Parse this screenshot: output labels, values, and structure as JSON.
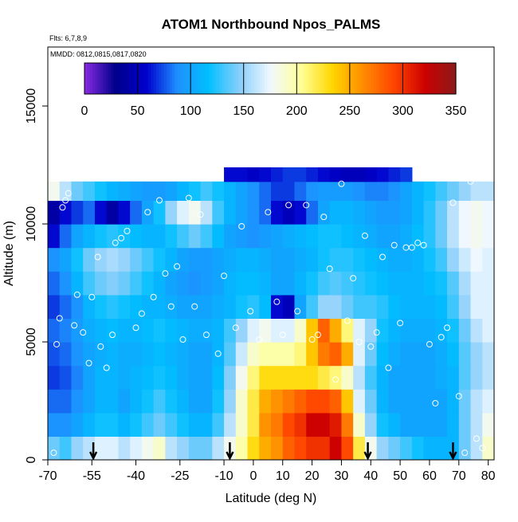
{
  "chart_data": {
    "type": "heatmap",
    "title": "ATOM1 Northbound Npos_PALMS",
    "flights_label": "Flts: 6,7,8,9",
    "dates_label": "MMDD: 0812,0815,0817,0820",
    "xlabel": "Latitude (deg N)",
    "ylabel": "Altitude (m)",
    "xlim": [
      -70,
      82
    ],
    "ylim": [
      0,
      17500
    ],
    "x_ticks": [
      -70,
      -55,
      -40,
      -25,
      -10,
      0,
      10,
      20,
      30,
      40,
      50,
      60,
      70,
      80
    ],
    "x_tick_labels": [
      "-70",
      "-55",
      "-40",
      "-25",
      "-10",
      "0",
      "10",
      "20",
      "30",
      "40",
      "50",
      "60",
      "70",
      "80"
    ],
    "y_ticks": [
      0,
      5000,
      10000,
      15000
    ],
    "y_tick_labels": [
      "0",
      "5000",
      "10000",
      "15000"
    ],
    "colorbar": {
      "min": 0,
      "max": 350,
      "ticks": [
        0,
        50,
        100,
        150,
        200,
        250,
        300,
        350
      ],
      "tick_labels": [
        "0",
        "50",
        "100",
        "150",
        "200",
        "250",
        "300",
        "350"
      ],
      "colors": [
        "#8a2be2",
        "#00008b",
        "#0000cd",
        "#1e90ff",
        "#00bfff",
        "#87cefa",
        "#f0f8ff",
        "#ffff99",
        "#ffd700",
        "#ff8c00",
        "#ff4500",
        "#cc0000",
        "#8b1a1a"
      ]
    },
    "grid": false,
    "arrow_latitudes": [
      -54.5,
      -8,
      39,
      68
    ],
    "lat_bins": [
      -68,
      -64,
      -60,
      -56,
      -52,
      -48,
      -44,
      -40,
      -36,
      -32,
      -28,
      -24,
      -20,
      -16,
      -12,
      -8,
      -4,
      0,
      4,
      8,
      12,
      16,
      20,
      24,
      28,
      32,
      36,
      40,
      44,
      48,
      52,
      56,
      60,
      64,
      68,
      72,
      76,
      80
    ],
    "alt_rows": [
      {
        "alt": 500,
        "values": [
          140,
          130,
          150,
          160,
          170,
          170,
          160,
          170,
          180,
          190,
          160,
          150,
          140,
          140,
          160,
          180,
          200,
          230,
          250,
          260,
          280,
          290,
          300,
          300,
          320,
          290,
          220,
          180,
          150,
          140,
          130,
          120,
          110,
          110,
          110,
          140,
          160,
          190
        ]
      },
      {
        "alt": 1500,
        "values": [
          90,
          90,
          100,
          110,
          120,
          120,
          110,
          120,
          130,
          140,
          130,
          120,
          110,
          110,
          130,
          160,
          190,
          220,
          260,
          270,
          290,
          300,
          320,
          320,
          310,
          270,
          190,
          150,
          120,
          110,
          100,
          100,
          100,
          100,
          110,
          140,
          160,
          180
        ]
      },
      {
        "alt": 2500,
        "values": [
          80,
          80,
          90,
          100,
          110,
          110,
          100,
          110,
          120,
          130,
          120,
          110,
          100,
          100,
          120,
          150,
          190,
          220,
          250,
          260,
          270,
          280,
          290,
          290,
          280,
          240,
          170,
          140,
          110,
          100,
          100,
          100,
          100,
          100,
          110,
          140,
          160,
          170
        ]
      },
      {
        "alt": 3500,
        "values": [
          70,
          75,
          85,
          100,
          110,
          110,
          105,
          110,
          115,
          120,
          115,
          105,
          100,
          100,
          115,
          145,
          180,
          210,
          230,
          230,
          230,
          230,
          230,
          220,
          210,
          190,
          160,
          130,
          110,
          100,
          100,
          100,
          100,
          105,
          110,
          135,
          150,
          160
        ]
      },
      {
        "alt": 4500,
        "values": [
          75,
          80,
          90,
          100,
          105,
          110,
          105,
          105,
          110,
          115,
          110,
          105,
          100,
          100,
          110,
          135,
          165,
          190,
          200,
          200,
          200,
          210,
          240,
          270,
          280,
          250,
          170,
          140,
          115,
          105,
          100,
          100,
          100,
          105,
          115,
          135,
          150,
          160
        ]
      },
      {
        "alt": 5500,
        "values": [
          80,
          85,
          95,
          105,
          110,
          115,
          110,
          110,
          115,
          120,
          115,
          110,
          105,
          105,
          110,
          130,
          150,
          170,
          180,
          170,
          170,
          190,
          240,
          280,
          250,
          210,
          170,
          150,
          120,
          110,
          105,
          105,
          105,
          110,
          120,
          140,
          160,
          170
        ]
      },
      {
        "alt": 6500,
        "values": [
          70,
          80,
          90,
          110,
          120,
          125,
          120,
          115,
          110,
          110,
          105,
          100,
          100,
          100,
          105,
          110,
          120,
          125,
          115,
          60,
          50,
          100,
          130,
          150,
          150,
          140,
          130,
          130,
          125,
          115,
          110,
          110,
          110,
          115,
          130,
          150,
          170,
          170
        ]
      },
      {
        "alt": 7500,
        "values": [
          80,
          90,
          110,
          130,
          140,
          145,
          140,
          130,
          120,
          110,
          100,
          95,
          90,
          95,
          100,
          110,
          115,
          115,
          110,
          100,
          100,
          110,
          120,
          130,
          135,
          130,
          125,
          120,
          115,
          110,
          110,
          110,
          115,
          120,
          135,
          155,
          170,
          170
        ]
      },
      {
        "alt": 8500,
        "values": [
          90,
          100,
          120,
          140,
          150,
          155,
          150,
          140,
          130,
          120,
          110,
          100,
          95,
          95,
          100,
          105,
          110,
          110,
          105,
          100,
          100,
          105,
          110,
          120,
          125,
          125,
          120,
          115,
          110,
          105,
          105,
          110,
          120,
          130,
          150,
          165,
          175,
          170
        ]
      },
      {
        "alt": 9500,
        "values": [
          60,
          80,
          100,
          110,
          120,
          125,
          120,
          115,
          110,
          110,
          120,
          130,
          140,
          130,
          115,
          100,
          95,
          90,
          95,
          100,
          105,
          110,
          115,
          120,
          120,
          115,
          110,
          105,
          100,
          100,
          105,
          115,
          125,
          140,
          160,
          175,
          180,
          175
        ]
      },
      {
        "alt": 10500,
        "values": [
          40,
          60,
          70,
          80,
          60,
          40,
          60,
          80,
          100,
          120,
          150,
          170,
          180,
          160,
          130,
          110,
          100,
          90,
          80,
          60,
          50,
          60,
          80,
          100,
          110,
          110,
          105,
          100,
          95,
          95,
          100,
          110,
          125,
          140,
          160,
          175,
          180,
          175
        ]
      },
      {
        "alt": 11500,
        "values": [
          180,
          160,
          140,
          130,
          120,
          110,
          105,
          100,
          95,
          95,
          100,
          110,
          120,
          130,
          120,
          110,
          100,
          90,
          80,
          70,
          70,
          80,
          90,
          95,
          95,
          95,
          90,
          85,
          85,
          90,
          100,
          110,
          120,
          130,
          140,
          150,
          160,
          160
        ]
      },
      {
        "alt": 12100,
        "values": [
          null,
          null,
          null,
          null,
          null,
          null,
          null,
          null,
          null,
          null,
          null,
          null,
          null,
          null,
          null,
          60,
          60,
          55,
          60,
          65,
          70,
          70,
          65,
          60,
          55,
          50,
          50,
          55,
          60,
          65,
          70,
          null,
          null,
          null,
          null,
          null,
          null,
          null
        ]
      }
    ],
    "sample_points": [
      [
        -68,
        300
      ],
      [
        -67,
        4900
      ],
      [
        -66,
        6000
      ],
      [
        -65,
        10700
      ],
      [
        -64,
        11000
      ],
      [
        -63,
        11300
      ],
      [
        -61,
        5700
      ],
      [
        -60,
        7000
      ],
      [
        -58,
        5400
      ],
      [
        -56,
        4100
      ],
      [
        -55,
        6900
      ],
      [
        -53,
        8600
      ],
      [
        -52,
        4800
      ],
      [
        -50,
        3900
      ],
      [
        -48,
        5300
      ],
      [
        -47,
        9200
      ],
      [
        -45,
        9400
      ],
      [
        -43,
        9700
      ],
      [
        -40,
        5600
      ],
      [
        -38,
        6200
      ],
      [
        -36,
        10500
      ],
      [
        -34,
        6900
      ],
      [
        -32,
        11000
      ],
      [
        -30,
        7900
      ],
      [
        -28,
        6500
      ],
      [
        -26,
        8200
      ],
      [
        -24,
        5100
      ],
      [
        -22,
        11100
      ],
      [
        -20,
        6500
      ],
      [
        -18,
        10400
      ],
      [
        -16,
        5300
      ],
      [
        -14,
        12000
      ],
      [
        -12,
        4500
      ],
      [
        -10,
        7800
      ],
      [
        -6,
        5600
      ],
      [
        -4,
        9900
      ],
      [
        -1,
        6300
      ],
      [
        2,
        5100
      ],
      [
        5,
        10500
      ],
      [
        8,
        6700
      ],
      [
        10,
        5300
      ],
      [
        12,
        10800
      ],
      [
        15,
        6300
      ],
      [
        18,
        10800
      ],
      [
        20,
        5100
      ],
      [
        22,
        5300
      ],
      [
        24,
        10300
      ],
      [
        26,
        8100
      ],
      [
        28,
        3400
      ],
      [
        30,
        11700
      ],
      [
        32,
        5900
      ],
      [
        34,
        7700
      ],
      [
        36,
        5000
      ],
      [
        38,
        9500
      ],
      [
        40,
        4800
      ],
      [
        42,
        5400
      ],
      [
        44,
        8600
      ],
      [
        46,
        3900
      ],
      [
        48,
        9100
      ],
      [
        50,
        5800
      ],
      [
        52,
        9000
      ],
      [
        54,
        9000
      ],
      [
        56,
        9200
      ],
      [
        58,
        9100
      ],
      [
        60,
        4900
      ],
      [
        62,
        2400
      ],
      [
        64,
        5200
      ],
      [
        66,
        5600
      ],
      [
        68,
        10900
      ],
      [
        70,
        2700
      ],
      [
        72,
        300
      ],
      [
        74,
        11800
      ],
      [
        76,
        900
      ],
      [
        78,
        500
      ]
    ]
  }
}
